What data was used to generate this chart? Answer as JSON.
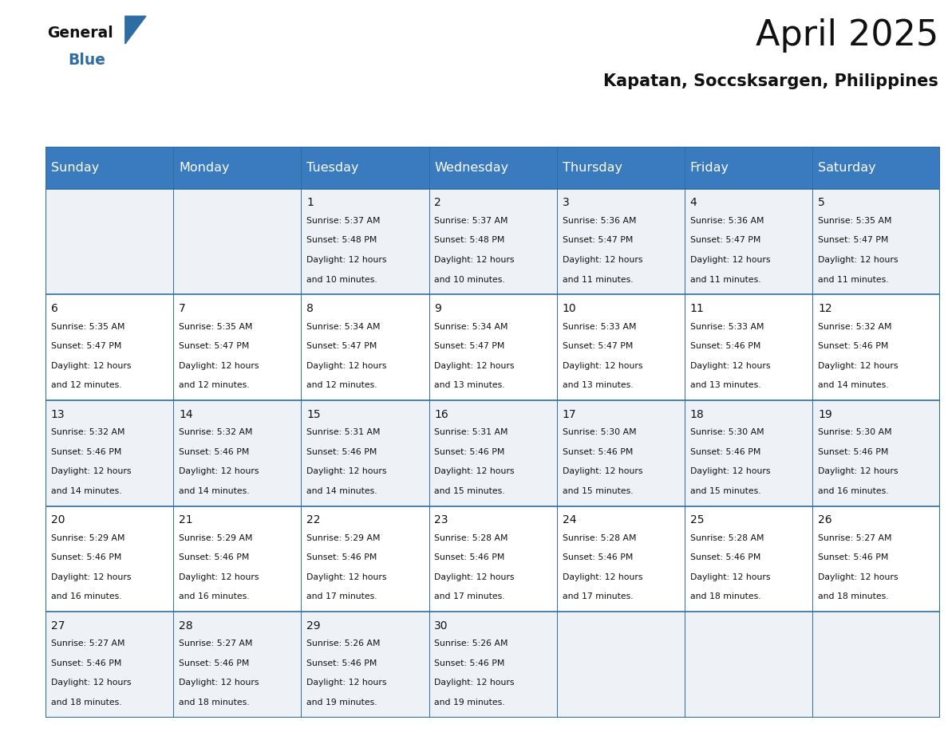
{
  "title": "April 2025",
  "subtitle": "Kapatan, Soccsksargen, Philippines",
  "header_bg_color": "#3a7bbf",
  "header_text_color": "#ffffff",
  "cell_bg_even": "#eef2f7",
  "cell_bg_odd": "#ffffff",
  "day_names": [
    "Sunday",
    "Monday",
    "Tuesday",
    "Wednesday",
    "Thursday",
    "Friday",
    "Saturday"
  ],
  "days": [
    {
      "day": 1,
      "col": 2,
      "row": 0,
      "sunrise": "5:37 AM",
      "sunset": "5:48 PM",
      "daylight": "12 hours and 10 minutes."
    },
    {
      "day": 2,
      "col": 3,
      "row": 0,
      "sunrise": "5:37 AM",
      "sunset": "5:48 PM",
      "daylight": "12 hours and 10 minutes."
    },
    {
      "day": 3,
      "col": 4,
      "row": 0,
      "sunrise": "5:36 AM",
      "sunset": "5:47 PM",
      "daylight": "12 hours and 11 minutes."
    },
    {
      "day": 4,
      "col": 5,
      "row": 0,
      "sunrise": "5:36 AM",
      "sunset": "5:47 PM",
      "daylight": "12 hours and 11 minutes."
    },
    {
      "day": 5,
      "col": 6,
      "row": 0,
      "sunrise": "5:35 AM",
      "sunset": "5:47 PM",
      "daylight": "12 hours and 11 minutes."
    },
    {
      "day": 6,
      "col": 0,
      "row": 1,
      "sunrise": "5:35 AM",
      "sunset": "5:47 PM",
      "daylight": "12 hours and 12 minutes."
    },
    {
      "day": 7,
      "col": 1,
      "row": 1,
      "sunrise": "5:35 AM",
      "sunset": "5:47 PM",
      "daylight": "12 hours and 12 minutes."
    },
    {
      "day": 8,
      "col": 2,
      "row": 1,
      "sunrise": "5:34 AM",
      "sunset": "5:47 PM",
      "daylight": "12 hours and 12 minutes."
    },
    {
      "day": 9,
      "col": 3,
      "row": 1,
      "sunrise": "5:34 AM",
      "sunset": "5:47 PM",
      "daylight": "12 hours and 13 minutes."
    },
    {
      "day": 10,
      "col": 4,
      "row": 1,
      "sunrise": "5:33 AM",
      "sunset": "5:47 PM",
      "daylight": "12 hours and 13 minutes."
    },
    {
      "day": 11,
      "col": 5,
      "row": 1,
      "sunrise": "5:33 AM",
      "sunset": "5:46 PM",
      "daylight": "12 hours and 13 minutes."
    },
    {
      "day": 12,
      "col": 6,
      "row": 1,
      "sunrise": "5:32 AM",
      "sunset": "5:46 PM",
      "daylight": "12 hours and 14 minutes."
    },
    {
      "day": 13,
      "col": 0,
      "row": 2,
      "sunrise": "5:32 AM",
      "sunset": "5:46 PM",
      "daylight": "12 hours and 14 minutes."
    },
    {
      "day": 14,
      "col": 1,
      "row": 2,
      "sunrise": "5:32 AM",
      "sunset": "5:46 PM",
      "daylight": "12 hours and 14 minutes."
    },
    {
      "day": 15,
      "col": 2,
      "row": 2,
      "sunrise": "5:31 AM",
      "sunset": "5:46 PM",
      "daylight": "12 hours and 14 minutes."
    },
    {
      "day": 16,
      "col": 3,
      "row": 2,
      "sunrise": "5:31 AM",
      "sunset": "5:46 PM",
      "daylight": "12 hours and 15 minutes."
    },
    {
      "day": 17,
      "col": 4,
      "row": 2,
      "sunrise": "5:30 AM",
      "sunset": "5:46 PM",
      "daylight": "12 hours and 15 minutes."
    },
    {
      "day": 18,
      "col": 5,
      "row": 2,
      "sunrise": "5:30 AM",
      "sunset": "5:46 PM",
      "daylight": "12 hours and 15 minutes."
    },
    {
      "day": 19,
      "col": 6,
      "row": 2,
      "sunrise": "5:30 AM",
      "sunset": "5:46 PM",
      "daylight": "12 hours and 16 minutes."
    },
    {
      "day": 20,
      "col": 0,
      "row": 3,
      "sunrise": "5:29 AM",
      "sunset": "5:46 PM",
      "daylight": "12 hours and 16 minutes."
    },
    {
      "day": 21,
      "col": 1,
      "row": 3,
      "sunrise": "5:29 AM",
      "sunset": "5:46 PM",
      "daylight": "12 hours and 16 minutes."
    },
    {
      "day": 22,
      "col": 2,
      "row": 3,
      "sunrise": "5:29 AM",
      "sunset": "5:46 PM",
      "daylight": "12 hours and 17 minutes."
    },
    {
      "day": 23,
      "col": 3,
      "row": 3,
      "sunrise": "5:28 AM",
      "sunset": "5:46 PM",
      "daylight": "12 hours and 17 minutes."
    },
    {
      "day": 24,
      "col": 4,
      "row": 3,
      "sunrise": "5:28 AM",
      "sunset": "5:46 PM",
      "daylight": "12 hours and 17 minutes."
    },
    {
      "day": 25,
      "col": 5,
      "row": 3,
      "sunrise": "5:28 AM",
      "sunset": "5:46 PM",
      "daylight": "12 hours and 18 minutes."
    },
    {
      "day": 26,
      "col": 6,
      "row": 3,
      "sunrise": "5:27 AM",
      "sunset": "5:46 PM",
      "daylight": "12 hours and 18 minutes."
    },
    {
      "day": 27,
      "col": 0,
      "row": 4,
      "sunrise": "5:27 AM",
      "sunset": "5:46 PM",
      "daylight": "12 hours and 18 minutes."
    },
    {
      "day": 28,
      "col": 1,
      "row": 4,
      "sunrise": "5:27 AM",
      "sunset": "5:46 PM",
      "daylight": "12 hours and 18 minutes."
    },
    {
      "day": 29,
      "col": 2,
      "row": 4,
      "sunrise": "5:26 AM",
      "sunset": "5:46 PM",
      "daylight": "12 hours and 19 minutes."
    },
    {
      "day": 30,
      "col": 3,
      "row": 4,
      "sunrise": "5:26 AM",
      "sunset": "5:46 PM",
      "daylight": "12 hours and 19 minutes."
    }
  ],
  "num_rows": 5,
  "num_cols": 7,
  "logo_triangle_color": "#2e6da4",
  "title_fontsize": 32,
  "subtitle_fontsize": 15,
  "header_fontsize": 11.5,
  "day_num_fontsize": 10,
  "cell_text_fontsize": 7.8,
  "grid_line_color": "#2e6da4"
}
